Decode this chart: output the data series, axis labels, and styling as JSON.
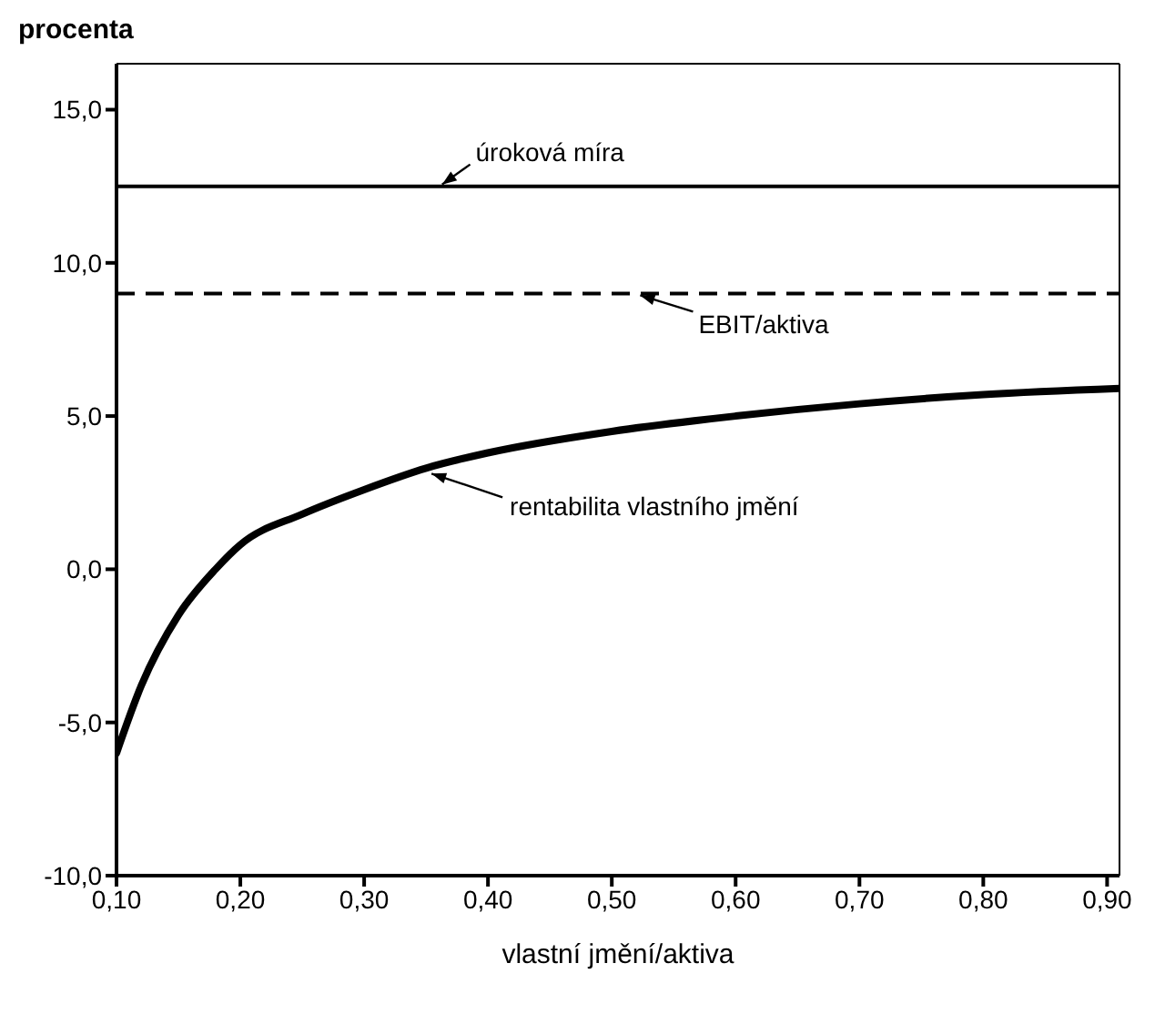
{
  "chart_data": {
    "type": "line",
    "ylabel": "procenta",
    "xlabel": "vlastní jmění/aktiva",
    "x": [
      0.1,
      0.12,
      0.15,
      0.18,
      0.2,
      0.25,
      0.3,
      0.35,
      0.4,
      0.5,
      0.6,
      0.7,
      0.8,
      0.91
    ],
    "series": [
      {
        "name": "rentabilita vlastního jmění",
        "color": "#000000",
        "values": [
          -6.0,
          -3.8,
          -1.5,
          0.0,
          0.8,
          1.8,
          2.6,
          3.3,
          3.8,
          4.5,
          5.0,
          5.4,
          5.7,
          5.9
        ]
      }
    ],
    "ref_lines": [
      {
        "axis": "y",
        "value": 12.5,
        "label": "úroková míra",
        "line_style": "solid",
        "color": "#000000"
      },
      {
        "axis": "y",
        "value": 9.0,
        "label": "EBIT/aktiva",
        "line_style": "dashed",
        "color": "#000000"
      }
    ],
    "xlim": [
      0.1,
      0.91
    ],
    "xticks": [
      {
        "value": 0.1,
        "label": "0,10"
      },
      {
        "value": 0.2,
        "label": "0,20"
      },
      {
        "value": 0.3,
        "label": "0,30"
      },
      {
        "value": 0.4,
        "label": "0,40"
      },
      {
        "value": 0.5,
        "label": "0,50"
      },
      {
        "value": 0.6,
        "label": "0,60"
      },
      {
        "value": 0.7,
        "label": "0,70"
      },
      {
        "value": 0.8,
        "label": "0,80"
      },
      {
        "value": 0.9,
        "label": "0,90"
      }
    ],
    "ylim": [
      -10,
      16.5
    ],
    "yticks": [
      {
        "value": -10,
        "label": "-10,0"
      },
      {
        "value": -5,
        "label": "-5,0"
      },
      {
        "value": 0,
        "label": "0,0"
      },
      {
        "value": 5,
        "label": "5,0"
      },
      {
        "value": 10,
        "label": "10,0"
      },
      {
        "value": 15,
        "label": "15,0"
      }
    ],
    "line_style": "solid"
  }
}
